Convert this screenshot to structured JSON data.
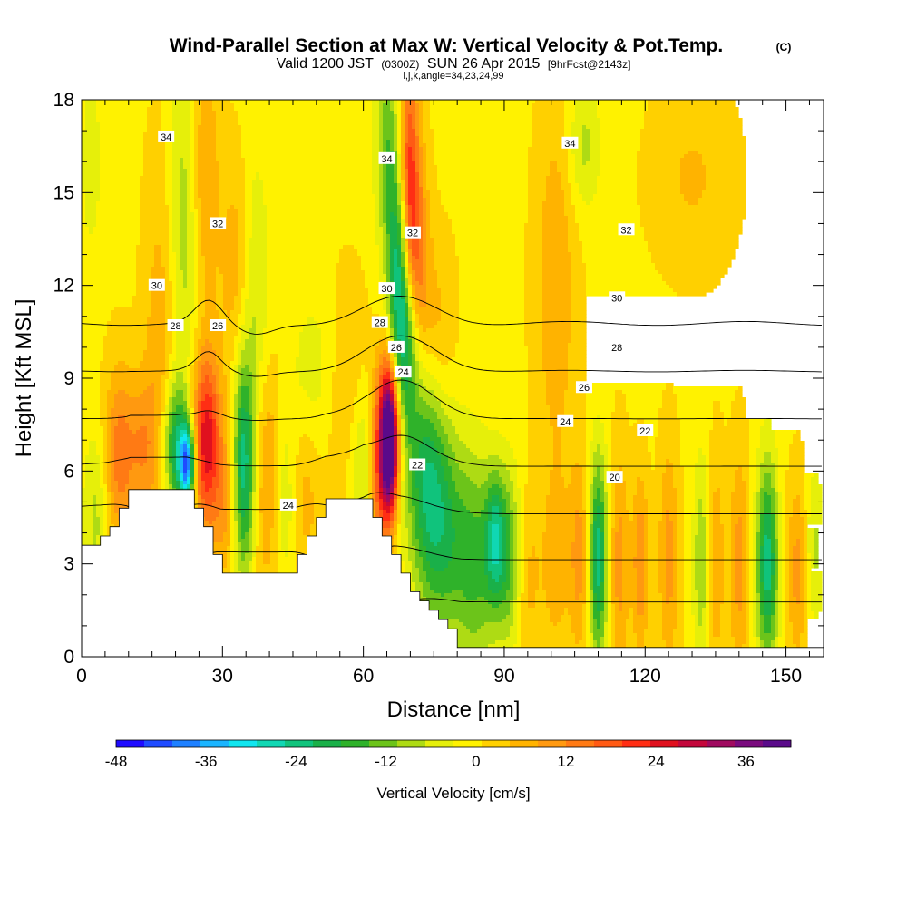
{
  "header": {
    "title": "Wind-Parallel Section at Max W: Vertical Velocity & Pot.Temp.",
    "copyright": "(C)",
    "valid_prefix": "Valid 1200 JST",
    "valid_z": "(0300Z)",
    "valid_date": "SUN 26 Apr 2015",
    "forecast": "[9hrFcst@2143z]",
    "indices": "i,j,k,angle=34,23,24,99"
  },
  "chart_data": {
    "type": "heatmap",
    "xlabel": "Distance [nm]",
    "ylabel": "Height [Kft MSL]",
    "xlim": [
      0,
      158
    ],
    "ylim": [
      0,
      18
    ],
    "x_ticks": [
      "0",
      "30",
      "60",
      "90",
      "120",
      "150"
    ],
    "y_ticks": [
      "0",
      "3",
      "6",
      "9",
      "12",
      "15",
      "18"
    ],
    "colorbar": {
      "label": "Vertical Velocity [cm/s]",
      "range": [
        -48,
        42
      ],
      "ticks": [
        "-48",
        "-36",
        "-24",
        "-12",
        "0",
        "12",
        "24",
        "36"
      ],
      "colors": [
        "#1f0bff",
        "#1f4bff",
        "#1e80ff",
        "#1bb5ff",
        "#10e6ef",
        "#10d7b3",
        "#10c37c",
        "#1ab049",
        "#2fb22a",
        "#6cc41a",
        "#aedb14",
        "#e6ef0a",
        "#fff200",
        "#ffd000",
        "#ffb300",
        "#ff9910",
        "#ff7a14",
        "#ff5a14",
        "#ff2e14",
        "#e0101e",
        "#c4083c",
        "#a00a60",
        "#7a0a7e",
        "#5a0a8a"
      ]
    },
    "velocity_features": [
      {
        "x": 3,
        "y": 4.5,
        "w": -8,
        "sx": 2,
        "sy": 2
      },
      {
        "x": 8,
        "y": 6.5,
        "w": 14,
        "sx": 2.2,
        "sy": 2.0
      },
      {
        "x": 13,
        "y": 6.8,
        "w": 10,
        "sx": 2.2,
        "sy": 1.6
      },
      {
        "x": 17,
        "y": 9.5,
        "w": 8,
        "sx": 2.5,
        "sy": 4.5
      },
      {
        "x": 20,
        "y": 6.8,
        "w": -22,
        "sx": 2.0,
        "sy": 1.5
      },
      {
        "x": 22.5,
        "y": 6.2,
        "w": -36,
        "sx": 1.2,
        "sy": 0.9
      },
      {
        "x": 22,
        "y": 14,
        "w": -10,
        "sx": 2.5,
        "sy": 4.0
      },
      {
        "x": 26.5,
        "y": 7.0,
        "w": 26,
        "sx": 2.2,
        "sy": 2.0
      },
      {
        "x": 26,
        "y": 15.5,
        "w": 10,
        "sx": 2.2,
        "sy": 3.0
      },
      {
        "x": 30.5,
        "y": 4.8,
        "w": 8,
        "sx": 2.0,
        "sy": 1.8
      },
      {
        "x": 34.5,
        "y": 6.2,
        "w": -24,
        "sx": 1.6,
        "sy": 2.5
      },
      {
        "x": 33,
        "y": 12.5,
        "w": 7,
        "sx": 2.5,
        "sy": 2.5
      },
      {
        "x": 37,
        "y": 12,
        "w": -8,
        "sx": 2.0,
        "sy": 3.0
      },
      {
        "x": 40,
        "y": 5.5,
        "w": 12,
        "sx": 2.0,
        "sy": 2.5
      },
      {
        "x": 43,
        "y": 5.0,
        "w": -10,
        "sx": 2.5,
        "sy": 2.0
      },
      {
        "x": 47,
        "y": 5.2,
        "w": 8,
        "sx": 2.5,
        "sy": 2.0
      },
      {
        "x": 50,
        "y": 9.0,
        "w": -6,
        "sx": 4.0,
        "sy": 2.0
      },
      {
        "x": 56,
        "y": 8.5,
        "w": 6,
        "sx": 3.5,
        "sy": 2.5
      },
      {
        "x": 60,
        "y": 6.0,
        "w": -10,
        "sx": 2.0,
        "sy": 2.0
      },
      {
        "x": 63,
        "y": 5.5,
        "w": 14,
        "sx": 1.5,
        "sy": 2.0
      },
      {
        "x": 65.5,
        "y": 6.5,
        "w": 40,
        "sx": 1.3,
        "sy": 1.5
      },
      {
        "x": 65.5,
        "y": 8.0,
        "w": 22,
        "sx": 1.8,
        "sy": 1.5
      },
      {
        "x": 65,
        "y": 16.5,
        "w": -12,
        "sx": 1.8,
        "sy": 2.5
      },
      {
        "x": 67.5,
        "y": 12.5,
        "w": -24,
        "sx": 1.6,
        "sy": 2.8
      },
      {
        "x": 69.5,
        "y": 10.0,
        "w": -18,
        "sx": 1.8,
        "sy": 2.0
      },
      {
        "x": 69.5,
        "y": 15.5,
        "w": 22,
        "sx": 1.6,
        "sy": 2.8
      },
      {
        "x": 71.5,
        "y": 12.5,
        "w": 14,
        "sx": 1.8,
        "sy": 2.5
      },
      {
        "x": 73,
        "y": 6.0,
        "w": -16,
        "sx": 3.0,
        "sy": 2.5
      },
      {
        "x": 77,
        "y": 4.0,
        "w": -16,
        "sx": 3.5,
        "sy": 2.5
      },
      {
        "x": 76,
        "y": 10.5,
        "w": 6,
        "sx": 2.5,
        "sy": 2.0
      },
      {
        "x": 84,
        "y": 3.0,
        "w": -14,
        "sx": 3.0,
        "sy": 2.5
      },
      {
        "x": 88,
        "y": 3.8,
        "w": -18,
        "sx": 1.5,
        "sy": 1.5
      },
      {
        "x": 91,
        "y": 3.2,
        "w": -14,
        "sx": 2.0,
        "sy": 2.0
      },
      {
        "x": 95,
        "y": 2.5,
        "w": 6,
        "sx": 2.0,
        "sy": 2.0
      },
      {
        "x": 101,
        "y": 12.0,
        "w": 8,
        "sx": 3.0,
        "sy": 4.0
      },
      {
        "x": 101,
        "y": 3.0,
        "w": 7,
        "sx": 2.0,
        "sy": 2.0
      },
      {
        "x": 106,
        "y": 3.2,
        "w": 10,
        "sx": 1.5,
        "sy": 2.2
      },
      {
        "x": 110,
        "y": 3.2,
        "w": -24,
        "sx": 1.4,
        "sy": 2.3
      },
      {
        "x": 114.5,
        "y": 3.0,
        "w": 10,
        "sx": 1.5,
        "sy": 2.5
      },
      {
        "x": 119,
        "y": 3.0,
        "w": 12,
        "sx": 1.2,
        "sy": 2.0
      },
      {
        "x": 125,
        "y": 3.2,
        "w": 10,
        "sx": 1.5,
        "sy": 2.5
      },
      {
        "x": 132,
        "y": 3.0,
        "w": -10,
        "sx": 1.3,
        "sy": 2.5
      },
      {
        "x": 135,
        "y": 3.0,
        "w": 8,
        "sx": 1.3,
        "sy": 2.5
      },
      {
        "x": 140,
        "y": 3.0,
        "w": 10,
        "sx": 1.5,
        "sy": 2.5
      },
      {
        "x": 146,
        "y": 3.0,
        "w": -24,
        "sx": 1.6,
        "sy": 2.3
      },
      {
        "x": 152.5,
        "y": 2.8,
        "w": 10,
        "sx": 1.6,
        "sy": 2.0
      },
      {
        "x": 156,
        "y": 3.5,
        "w": -8,
        "sx": 1.5,
        "sy": 1.8
      },
      {
        "x": 130,
        "y": 15.5,
        "w": 5,
        "sx": 6.0,
        "sy": 2.0
      },
      {
        "x": 107,
        "y": 16.5,
        "w": -8,
        "sx": 2.5,
        "sy": 1.5
      },
      {
        "x": 2,
        "y": 16.0,
        "w": -6,
        "sx": 1.5,
        "sy": 2.0
      }
    ],
    "theta_levels": [
      20,
      22,
      24,
      26,
      28,
      30,
      32,
      34
    ],
    "theta_labels": [
      {
        "text": "34",
        "x": 18,
        "y": 16.8
      },
      {
        "text": "34",
        "x": 65,
        "y": 16.1
      },
      {
        "text": "34",
        "x": 104,
        "y": 16.6
      },
      {
        "text": "32",
        "x": 29,
        "y": 14.0
      },
      {
        "text": "32",
        "x": 70.5,
        "y": 13.7
      },
      {
        "text": "32",
        "x": 116,
        "y": 13.8
      },
      {
        "text": "30",
        "x": 16,
        "y": 12.0
      },
      {
        "text": "30",
        "x": 65,
        "y": 11.9
      },
      {
        "text": "30",
        "x": 114,
        "y": 11.6
      },
      {
        "text": "28",
        "x": 20,
        "y": 10.7
      },
      {
        "text": "26",
        "x": 29,
        "y": 10.7
      },
      {
        "text": "28",
        "x": 63.5,
        "y": 10.8
      },
      {
        "text": "26",
        "x": 67,
        "y": 10.0
      },
      {
        "text": "28",
        "x": 114,
        "y": 10.0
      },
      {
        "text": "24",
        "x": 68.5,
        "y": 9.2
      },
      {
        "text": "26",
        "x": 107,
        "y": 8.7
      },
      {
        "text": "24",
        "x": 103,
        "y": 7.6
      },
      {
        "text": "22",
        "x": 120,
        "y": 7.3
      },
      {
        "text": "22",
        "x": 71.5,
        "y": 6.2
      },
      {
        "text": "24",
        "x": 44,
        "y": 4.9
      },
      {
        "text": "20",
        "x": 113.5,
        "y": 5.8
      }
    ]
  }
}
